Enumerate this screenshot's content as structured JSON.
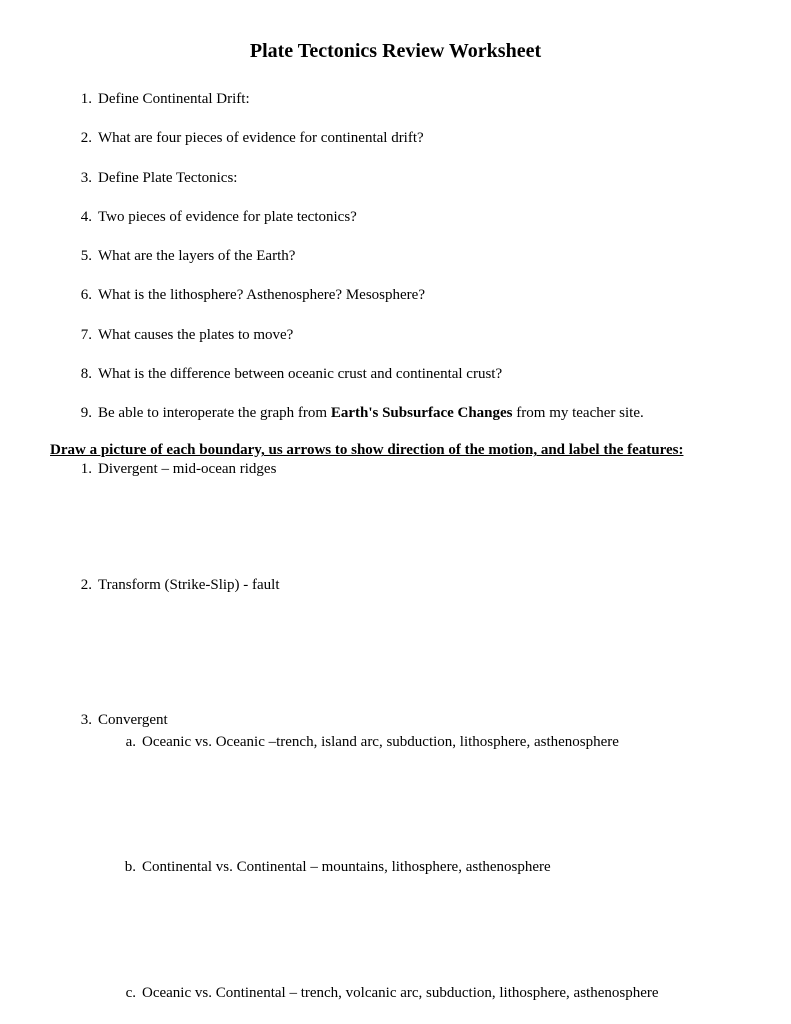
{
  "title": "Plate Tectonics Review Worksheet",
  "questions": [
    {
      "num": "1.",
      "text": "Define Continental Drift:"
    },
    {
      "num": "2.",
      "text": "What are four pieces of evidence for continental drift?"
    },
    {
      "num": "3.",
      "text": "Define Plate Tectonics:"
    },
    {
      "num": "4.",
      "text": "Two pieces of evidence for plate tectonics?"
    },
    {
      "num": "5.",
      "text": "What are the layers of the Earth?"
    },
    {
      "num": "6.",
      "text": "What is the lithosphere?  Asthenosphere?  Mesosphere?"
    },
    {
      "num": "7.",
      "text": "What causes the plates to move?"
    },
    {
      "num": "8.",
      "text": "What is the difference between oceanic crust and continental crust?"
    }
  ],
  "question9": {
    "num": "9.",
    "prefix": "Be able to interoperate the graph from ",
    "bold": "Earth's Subsurface Changes",
    "suffix": " from my teacher site."
  },
  "section_heading": "Draw a picture of each boundary, us arrows to show direction of the motion, and label the features:",
  "boundaries": [
    {
      "num": "1.",
      "text": "Divergent – mid-ocean ridges"
    },
    {
      "num": "2.",
      "text": "Transform (Strike-Slip) - fault"
    },
    {
      "num": "3.",
      "text": "Convergent"
    }
  ],
  "convergent_subs": [
    {
      "letter": "a.",
      "text": "Oceanic vs. Oceanic –trench, island arc, subduction, lithosphere, asthenosphere"
    },
    {
      "letter": "b.",
      "text": "Continental vs. Continental – mountains, lithosphere, asthenosphere"
    },
    {
      "letter": "c.",
      "text": "Oceanic vs. Continental – trench, volcanic arc, subduction, lithosphere, asthenosphere"
    }
  ]
}
